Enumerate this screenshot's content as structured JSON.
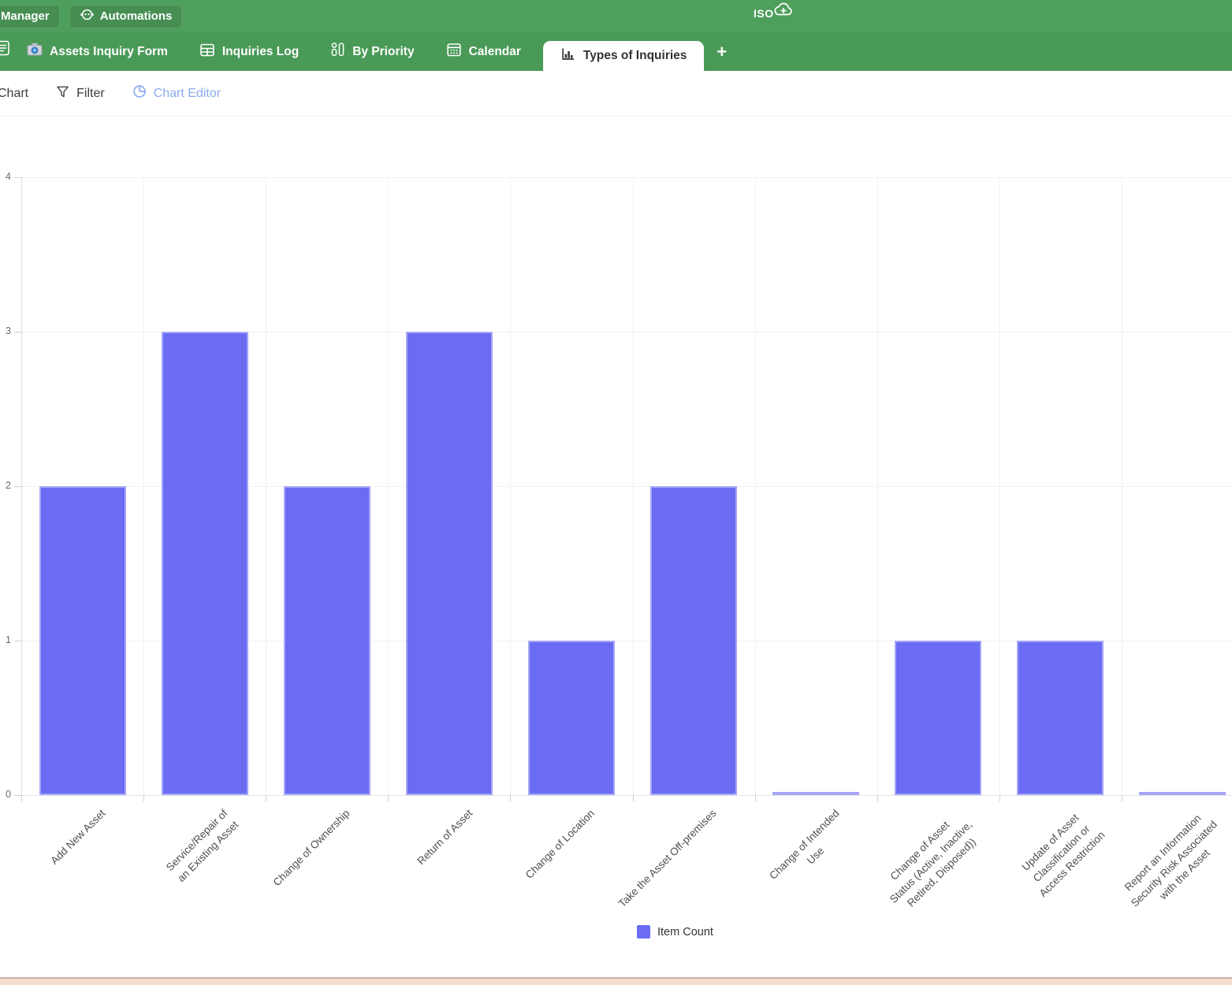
{
  "header": {
    "manager_label": "Manager",
    "automations_label": "Automations",
    "iso_label": "ISO"
  },
  "tabs": {
    "items": [
      {
        "label": "Assets Inquiry Form",
        "icon": "camera-icon",
        "active": false
      },
      {
        "label": "Inquiries Log",
        "icon": "table-icon",
        "active": false
      },
      {
        "label": "By Priority",
        "icon": "kanban-icon",
        "active": false
      },
      {
        "label": "Calendar",
        "icon": "calendar-icon",
        "active": false
      },
      {
        "label": "Types of Inquiries",
        "icon": "bar-chart-icon",
        "active": true
      }
    ],
    "add_tab_label": "+"
  },
  "toolbar": {
    "chart_label": "Chart",
    "filter_label": "Filter",
    "chart_editor_label": "Chart Editor"
  },
  "colors": {
    "header_green": "#4f9f5c",
    "tab_bar_green": "#4a9a57",
    "bar_purple": "#6b6cf3",
    "chart_editor_blue": "#8aacec",
    "bottom_strip_pink": "#f4ddd1"
  },
  "chart_data": {
    "type": "bar",
    "title": "",
    "series_name": "Item Count",
    "categories": [
      "Add New Asset",
      "Service/Repair of an Existing Asset",
      "Change of Ownership",
      "Return of Asset",
      "Change of Location",
      "Take the Asset Off-premises",
      "Change of Intended Use",
      "Change of Asset Status (Active, Inactive, Retired, Disposed))",
      "Update of Asset Classification or Access Restriction",
      "Report an Information Security Risk Associated with the Asset"
    ],
    "values": [
      2,
      3,
      2,
      3,
      1,
      2,
      0,
      1,
      1,
      0
    ],
    "tick_label_lines": [
      [
        "Add New Asset"
      ],
      [
        "Service/Repair of",
        "an Existing Asset"
      ],
      [
        "Change of Ownership"
      ],
      [
        "Return of Asset"
      ],
      [
        "Change of Location"
      ],
      [
        "Take the Asset Off-premises"
      ],
      [
        "Change of Intended",
        "Use"
      ],
      [
        "Change of Asset",
        "Status (Active, Inactive,",
        "Retired, Disposed))"
      ],
      [
        "Update of Asset",
        "Classification or",
        "Access Restriction"
      ],
      [
        "Report an Information",
        "Security Risk Associated",
        "with the Asset"
      ]
    ],
    "xlabel": "",
    "ylabel": "",
    "ylim": [
      0,
      4
    ],
    "yticks": [
      0,
      1,
      2,
      3,
      4
    ],
    "grid": true,
    "legend_position": "bottom",
    "bar_color": "#6b6cf3"
  }
}
